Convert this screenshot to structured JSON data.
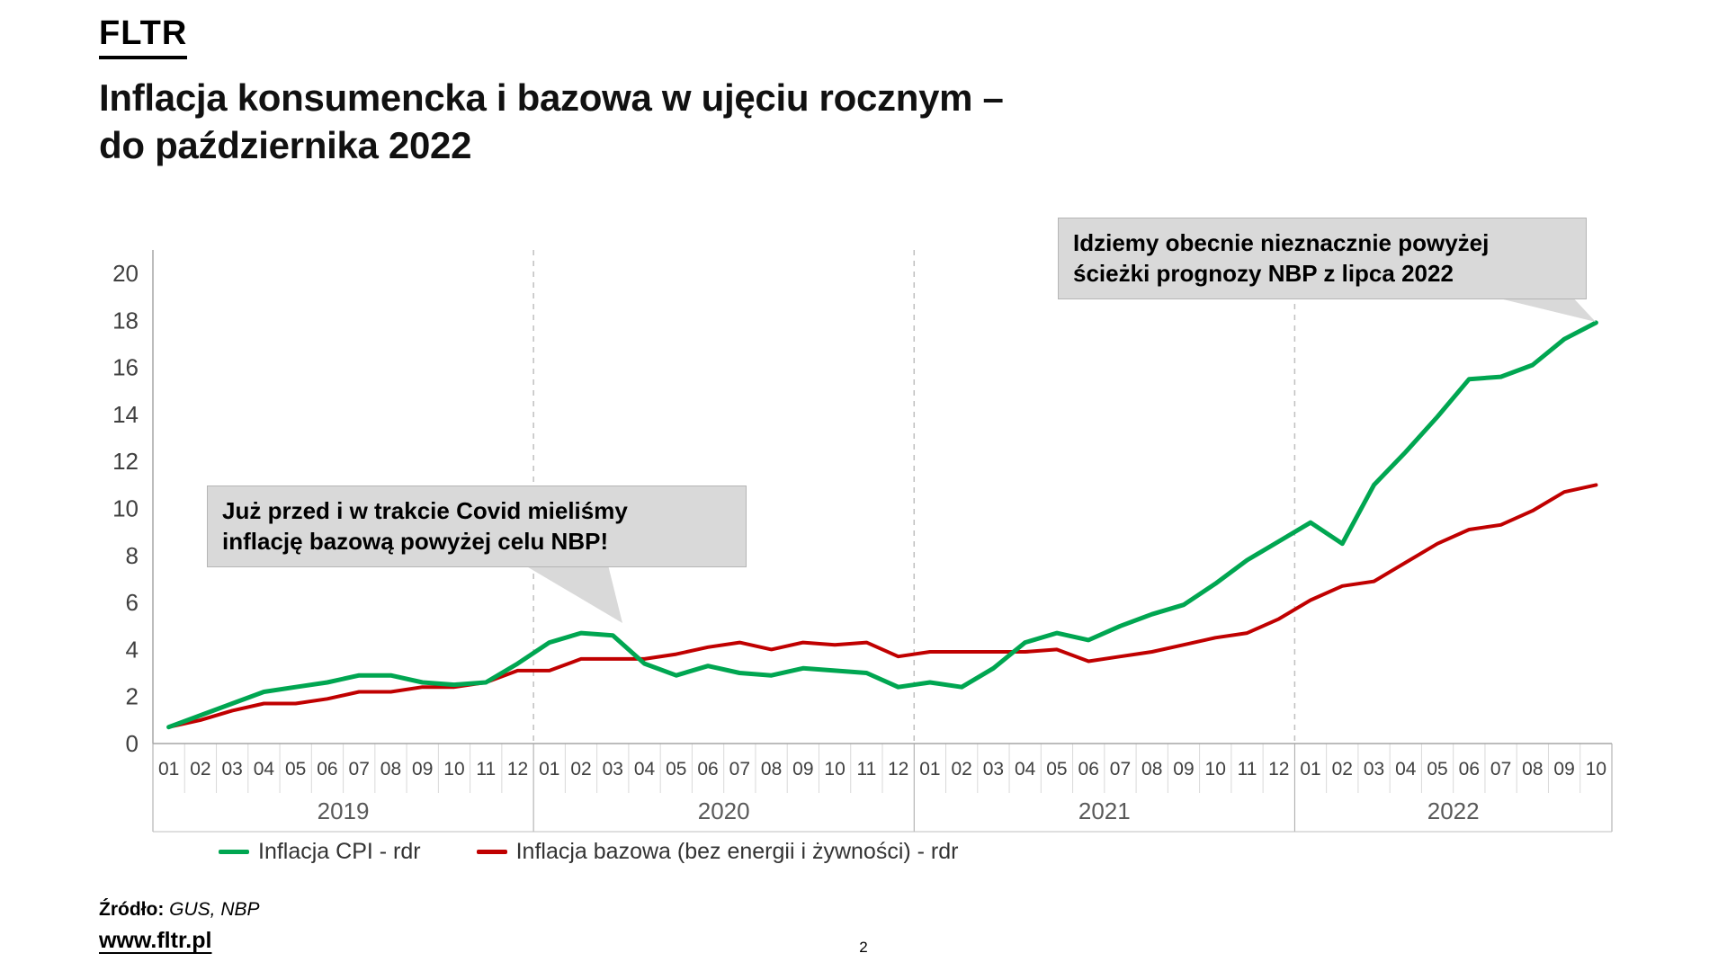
{
  "header": {
    "logo": "FLTR",
    "title_line1": "Inflacja konsumencka i bazowa w ujęciu rocznym –",
    "title_line2": "do października 2022"
  },
  "callouts": {
    "covid": {
      "line1": "Już przed i w trakcie Covid mieliśmy",
      "line2": "inflację bazową powyżej celu NBP!"
    },
    "nbp": {
      "line1": "Idziemy obecnie nieznacznie powyżej",
      "line2": "ścieżki prognozy NBP z lipca 2022"
    }
  },
  "chart_data": {
    "type": "line",
    "title": "Inflacja konsumencka i bazowa w ujęciu rocznym – do października 2022",
    "xlabel": "",
    "ylabel": "",
    "ylim": [
      0,
      21
    ],
    "yticks": [
      0,
      2,
      4,
      6,
      8,
      10,
      12,
      14,
      16,
      18,
      20
    ],
    "grid": "dashed vertical separators at year boundaries, no horizontal gridlines",
    "legend_position": "bottom-left",
    "x_months": [
      "01",
      "02",
      "03",
      "04",
      "05",
      "06",
      "07",
      "08",
      "09",
      "10",
      "11",
      "12",
      "01",
      "02",
      "03",
      "04",
      "05",
      "06",
      "07",
      "08",
      "09",
      "10",
      "11",
      "12",
      "01",
      "02",
      "03",
      "04",
      "05",
      "06",
      "07",
      "08",
      "09",
      "10",
      "11",
      "12",
      "01",
      "02",
      "03",
      "04",
      "05",
      "06",
      "07",
      "08",
      "09",
      "10"
    ],
    "year_groups": [
      {
        "label": "2019",
        "count": 12
      },
      {
        "label": "2020",
        "count": 12
      },
      {
        "label": "2021",
        "count": 12
      },
      {
        "label": "2022",
        "count": 10
      }
    ],
    "series": [
      {
        "name": "Inflacja CPI - rdr",
        "color": "#00A651",
        "values": [
          0.7,
          1.2,
          1.7,
          2.2,
          2.4,
          2.6,
          2.9,
          2.9,
          2.6,
          2.5,
          2.6,
          3.4,
          4.3,
          4.7,
          4.6,
          3.4,
          2.9,
          3.3,
          3.0,
          2.9,
          3.2,
          3.1,
          3.0,
          2.4,
          2.6,
          2.4,
          3.2,
          4.3,
          4.7,
          4.4,
          5.0,
          5.5,
          5.9,
          6.8,
          7.8,
          8.6,
          9.4,
          8.5,
          11.0,
          12.4,
          13.9,
          15.5,
          15.6,
          16.1,
          17.2,
          17.9
        ]
      },
      {
        "name": "Inflacja bazowa (bez energii i żywności) - rdr",
        "color": "#C00000",
        "values": [
          0.7,
          1.0,
          1.4,
          1.7,
          1.7,
          1.9,
          2.2,
          2.2,
          2.4,
          2.4,
          2.6,
          3.1,
          3.1,
          3.6,
          3.6,
          3.6,
          3.8,
          4.1,
          4.3,
          4.0,
          4.3,
          4.2,
          4.3,
          3.7,
          3.9,
          3.9,
          3.9,
          3.9,
          4.0,
          3.5,
          3.7,
          3.9,
          4.2,
          4.5,
          4.7,
          5.3,
          6.1,
          6.7,
          6.9,
          7.7,
          8.5,
          9.1,
          9.3,
          9.9,
          10.7,
          11.0
        ]
      }
    ],
    "axis_colors": {
      "tick_label": "#404040",
      "year_label": "#595959",
      "axis_line": "#A6A6A6",
      "month_tick": "#D9D9D9",
      "dashed_separator": "#BFBFBF"
    }
  },
  "footer": {
    "source_label": "Źródło:",
    "source_value": "GUS, NBP",
    "website": "www.fltr.pl",
    "page_number": "2"
  }
}
